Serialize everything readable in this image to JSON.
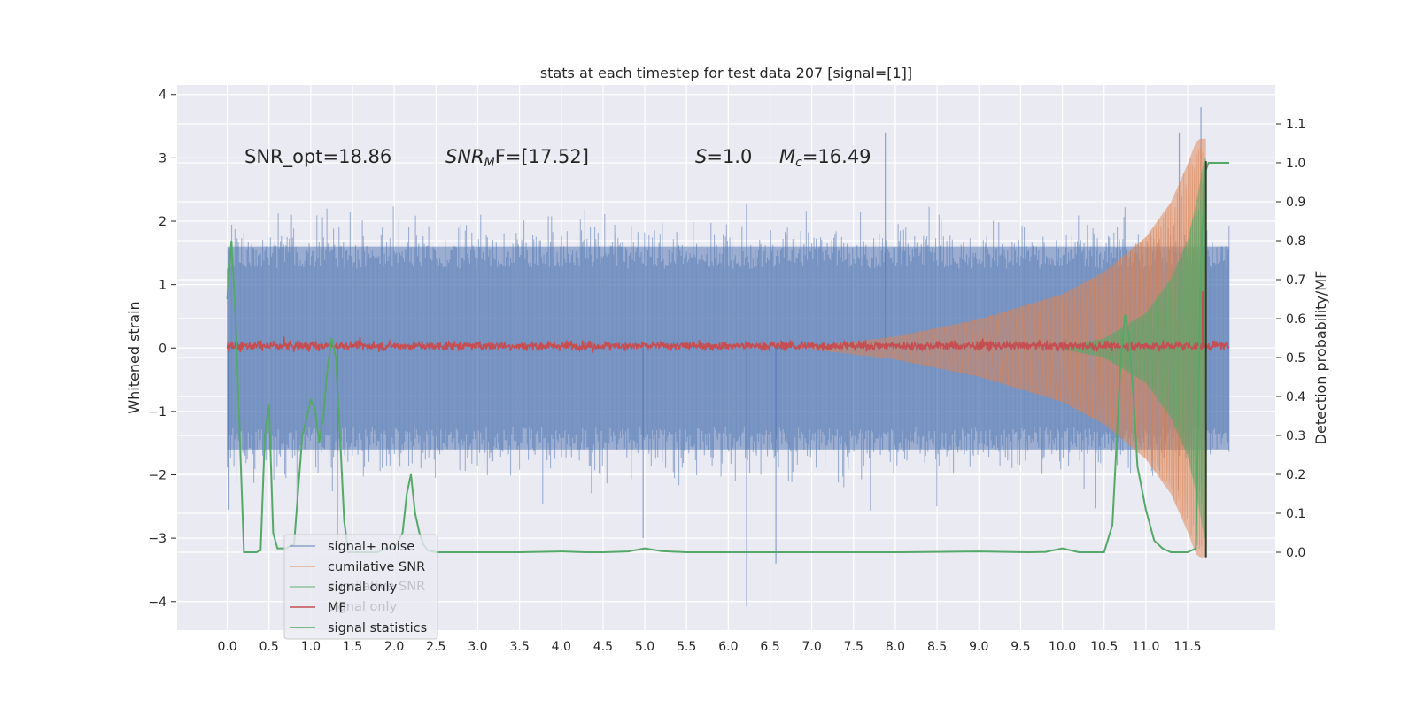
{
  "chart_data": {
    "type": "line",
    "title": "stats at each timestep for test data 207 [signal=[1]]",
    "xlabel": "",
    "ylabel": "Whitened strain",
    "y2label": "Detection probability/MF",
    "xlim": [
      -0.6,
      12.55
    ],
    "ylim": [
      -4.45,
      4.15
    ],
    "y2lim": [
      -0.2,
      1.2
    ],
    "xticks": [
      "0.0",
      "0.5",
      "1.0",
      "1.5",
      "2.0",
      "2.5",
      "3.0",
      "3.5",
      "4.0",
      "4.5",
      "5.0",
      "5.5",
      "6.0",
      "6.5",
      "7.0",
      "7.5",
      "8.0",
      "8.5",
      "9.0",
      "9.5",
      "10.0",
      "10.5",
      "11.0",
      "11.5"
    ],
    "yticks": [
      "4",
      "3",
      "2",
      "1",
      "0",
      "−1",
      "−2",
      "−3",
      "−4"
    ],
    "y2ticks": [
      "1.1",
      "1.0",
      "0.9",
      "0.8",
      "0.7",
      "0.6",
      "0.5",
      "0.4",
      "0.3",
      "0.2",
      "0.1",
      "0.0"
    ],
    "annotations": {
      "snr_opt": "SNR_opt=18.86",
      "snr_mf_name": "SNR",
      "snr_mf_sub": "M",
      "snr_mf_rest": "F=[17.52]",
      "s_name": "S",
      "s_rest": "=1.0",
      "mc_name": "M",
      "mc_sub": "c",
      "mc_rest": "=16.49"
    },
    "legend": {
      "position": "lower-left",
      "entries": [
        {
          "label": "signal+ noise",
          "color": "#4c72b0"
        },
        {
          "label": "cumilative SNR",
          "color": "#dd8452"
        },
        {
          "label": "signal only",
          "color": "#55a868"
        },
        {
          "label": "MF",
          "color": "#c44e52"
        },
        {
          "label": "signal statistics",
          "color": "#55a868"
        }
      ],
      "ghost_labels": [
        "cumilative SNR",
        "signal only"
      ]
    },
    "series": [
      {
        "name": "signal+ noise",
        "color": "#4c72b0",
        "axis": "left",
        "t_range": [
          0.0,
          12.0
        ],
        "band_typical": [
          -1.6,
          1.6
        ],
        "extremes": [
          [
            0.02,
            -2.55
          ],
          [
            6.22,
            -4.08
          ],
          [
            6.57,
            -3.4
          ],
          [
            4.98,
            -3.0
          ],
          [
            11.66,
            3.8
          ],
          [
            11.4,
            3.4
          ],
          [
            7.88,
            3.4
          ],
          [
            1.32,
            -3.08
          ]
        ]
      },
      {
        "name": "cumilative SNR",
        "color": "#dd8452",
        "axis": "left",
        "envelope": [
          [
            7.0,
            0.02
          ],
          [
            8.0,
            0.18
          ],
          [
            9.0,
            0.45
          ],
          [
            10.0,
            0.85
          ],
          [
            10.5,
            1.2
          ],
          [
            11.0,
            1.75
          ],
          [
            11.3,
            2.3
          ],
          [
            11.5,
            2.9
          ],
          [
            11.6,
            3.25
          ],
          [
            11.65,
            3.3
          ]
        ],
        "end_t": 11.72
      },
      {
        "name": "signal only",
        "color": "#55a868",
        "axis": "left",
        "envelope": [
          [
            10.0,
            0.02
          ],
          [
            10.5,
            0.15
          ],
          [
            11.0,
            0.55
          ],
          [
            11.3,
            1.1
          ],
          [
            11.5,
            1.7
          ],
          [
            11.62,
            2.4
          ],
          [
            11.7,
            3.0
          ]
        ],
        "end_t": 11.72
      },
      {
        "name": "MF",
        "color": "#c44e52",
        "axis": "right",
        "baseline": 0.53,
        "noise": 0.012,
        "spike": [
          11.68,
          0.67
        ]
      },
      {
        "name": "signal statistics",
        "color": "#55a868",
        "axis": "right",
        "x": [
          0.0,
          0.05,
          0.1,
          0.15,
          0.2,
          0.25,
          0.3,
          0.35,
          0.4,
          0.45,
          0.5,
          0.55,
          0.6,
          0.7,
          0.8,
          0.9,
          1.0,
          1.05,
          1.1,
          1.15,
          1.2,
          1.25,
          1.3,
          1.35,
          1.4,
          1.45,
          1.5,
          1.55,
          1.6,
          1.7,
          1.8,
          1.9,
          2.0,
          2.1,
          2.15,
          2.2,
          2.25,
          2.3,
          2.35,
          2.4,
          2.5,
          2.6,
          3.0,
          3.5,
          4.0,
          4.3,
          4.5,
          4.8,
          5.0,
          5.2,
          5.5,
          6.0,
          7.0,
          8.0,
          9.0,
          9.6,
          9.8,
          10.0,
          10.2,
          10.5,
          10.6,
          10.7,
          10.75,
          10.8,
          10.85,
          10.9,
          11.0,
          11.1,
          11.2,
          11.3,
          11.4,
          11.5,
          11.6,
          11.65,
          11.7,
          11.75,
          11.8,
          11.85,
          11.9,
          12.0
        ],
        "y": [
          0.65,
          0.8,
          0.6,
          0.3,
          0.0,
          0.0,
          0.0,
          0.0,
          0.005,
          0.3,
          0.38,
          0.05,
          0.01,
          0.01,
          0.02,
          0.3,
          0.39,
          0.37,
          0.28,
          0.35,
          0.47,
          0.55,
          0.5,
          0.3,
          0.08,
          0.0,
          0.0,
          0.0,
          0.0,
          0.0,
          0.0,
          0.01,
          0.01,
          0.05,
          0.15,
          0.2,
          0.1,
          0.05,
          0.02,
          0.005,
          0.0,
          0.0,
          0.0,
          0.0,
          0.002,
          0.0,
          0.0,
          0.002,
          0.01,
          0.003,
          0.0,
          0.0,
          0.0,
          0.0,
          0.002,
          0.0,
          0.001,
          0.01,
          0.0,
          0.0,
          0.07,
          0.5,
          0.61,
          0.55,
          0.4,
          0.22,
          0.11,
          0.03,
          0.01,
          0.0,
          0.0,
          0.0,
          0.01,
          0.65,
          0.97,
          1.0,
          1.0,
          1.0,
          1.0,
          1.0
        ]
      }
    ]
  }
}
